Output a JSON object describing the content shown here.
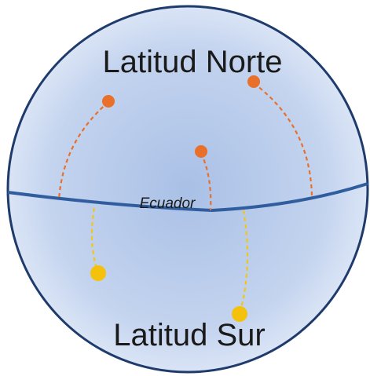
{
  "labels": {
    "north": "Latitud Norte",
    "equator": "Ecuador",
    "south": "Latitud Sur"
  }
}
